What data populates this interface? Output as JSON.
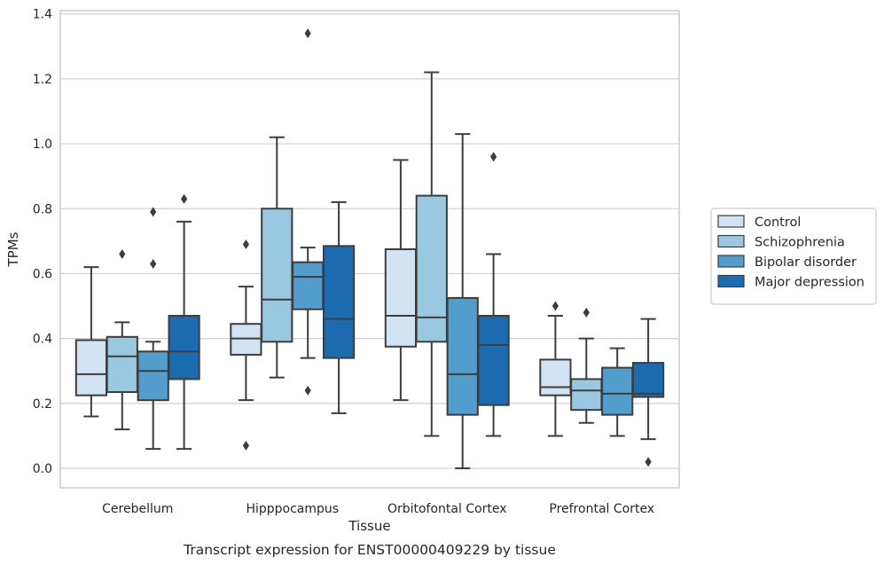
{
  "caption": "Transcript expression for ENST00000409229 by tissue",
  "chart_data": {
    "type": "box",
    "xlabel": "Tissue",
    "ylabel": "TPMs",
    "ylim": [
      -0.06,
      1.41
    ],
    "yticks": [
      "0.0",
      "0.2",
      "0.4",
      "0.6",
      "0.8",
      "1.0",
      "1.2",
      "1.4"
    ],
    "grid": "horizontal",
    "legend_position": "right",
    "categories": [
      "Cerebellum",
      "Hipppocampus",
      "Orbitofontal Cortex",
      "Prefrontal Cortex"
    ],
    "series": [
      {
        "name": "Control",
        "color": "#d2e3f3",
        "boxes": [
          {
            "q1": 0.225,
            "median": 0.29,
            "q3": 0.395,
            "whisker_low": 0.16,
            "whisker_high": 0.62,
            "outliers": []
          },
          {
            "q1": 0.35,
            "median": 0.4,
            "q3": 0.445,
            "whisker_low": 0.21,
            "whisker_high": 0.56,
            "outliers": [
              0.69,
              0.07
            ]
          },
          {
            "q1": 0.375,
            "median": 0.47,
            "q3": 0.675,
            "whisker_low": 0.21,
            "whisker_high": 0.95,
            "outliers": []
          },
          {
            "q1": 0.225,
            "median": 0.25,
            "q3": 0.335,
            "whisker_low": 0.1,
            "whisker_high": 0.47,
            "outliers": [
              0.5
            ]
          }
        ]
      },
      {
        "name": "Schizophrenia",
        "color": "#9ac8e0",
        "boxes": [
          {
            "q1": 0.235,
            "median": 0.345,
            "q3": 0.405,
            "whisker_low": 0.12,
            "whisker_high": 0.45,
            "outliers": [
              0.66
            ]
          },
          {
            "q1": 0.39,
            "median": 0.52,
            "q3": 0.8,
            "whisker_low": 0.28,
            "whisker_high": 1.02,
            "outliers": []
          },
          {
            "q1": 0.39,
            "median": 0.465,
            "q3": 0.84,
            "whisker_low": 0.1,
            "whisker_high": 1.22,
            "outliers": []
          },
          {
            "q1": 0.18,
            "median": 0.24,
            "q3": 0.275,
            "whisker_low": 0.14,
            "whisker_high": 0.4,
            "outliers": [
              0.48
            ]
          }
        ]
      },
      {
        "name": "Bipolar disorder",
        "color": "#529dcc",
        "boxes": [
          {
            "q1": 0.21,
            "median": 0.3,
            "q3": 0.36,
            "whisker_low": 0.06,
            "whisker_high": 0.39,
            "outliers": [
              0.79,
              0.63
            ]
          },
          {
            "q1": 0.49,
            "median": 0.59,
            "q3": 0.635,
            "whisker_low": 0.34,
            "whisker_high": 0.68,
            "outliers": [
              0.24,
              1.34
            ]
          },
          {
            "q1": 0.165,
            "median": 0.29,
            "q3": 0.525,
            "whisker_low": 0.0,
            "whisker_high": 1.03,
            "outliers": []
          },
          {
            "q1": 0.165,
            "median": 0.23,
            "q3": 0.31,
            "whisker_low": 0.1,
            "whisker_high": 0.37,
            "outliers": []
          }
        ]
      },
      {
        "name": "Major depression",
        "color": "#1c6aaf",
        "boxes": [
          {
            "q1": 0.275,
            "median": 0.36,
            "q3": 0.47,
            "whisker_low": 0.06,
            "whisker_high": 0.76,
            "outliers": [
              0.83
            ]
          },
          {
            "q1": 0.34,
            "median": 0.46,
            "q3": 0.685,
            "whisker_low": 0.17,
            "whisker_high": 0.82,
            "outliers": []
          },
          {
            "q1": 0.195,
            "median": 0.38,
            "q3": 0.47,
            "whisker_low": 0.1,
            "whisker_high": 0.66,
            "outliers": [
              0.96
            ]
          },
          {
            "q1": 0.22,
            "median": 0.23,
            "q3": 0.325,
            "whisker_low": 0.09,
            "whisker_high": 0.46,
            "outliers": [
              0.02
            ]
          }
        ]
      }
    ]
  }
}
